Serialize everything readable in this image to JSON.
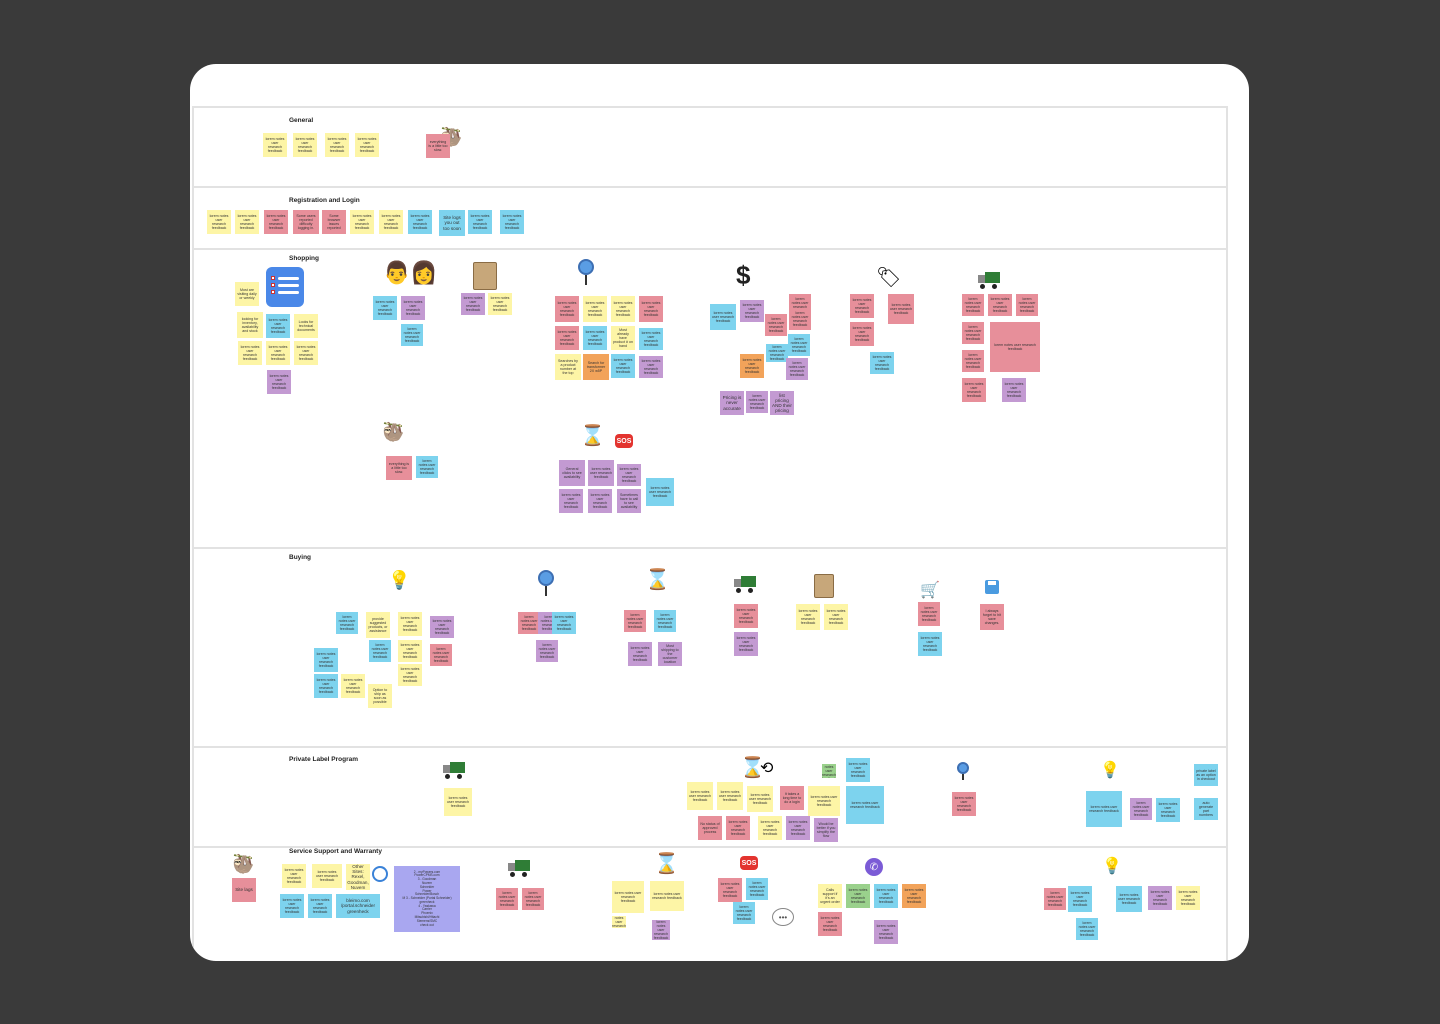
{
  "lanes": [
    {
      "title": "General"
    },
    {
      "title": "Registration and Login"
    },
    {
      "title": "Shopping"
    },
    {
      "title": "Buying"
    },
    {
      "title": "Private Label Program"
    },
    {
      "title": "Service Support and Warranty"
    }
  ],
  "notes": {
    "general_everything_slow": "everything is a little too slow.",
    "reg_some_users": "Some users reported difficulty logging in.",
    "reg_some_browser": "Some browser issues reported",
    "reg_site_logs": "Site logs you out too soon",
    "shop_most_visiting": "Most are visiting daily or weekly",
    "shop_looking_inventory": "looking for inventory, availability and stock",
    "shop_looks_technical": "Looks for technical documents",
    "shop_searches_product": "Searches by a product number at the top",
    "shop_search_transformer": "Search for transformer 2X w5P",
    "shop_most_already": "Most already have product # on hand",
    "shop_pricing_never": "Pricing is never accurate",
    "shop_list_pricing": "list pricing AND their pricing",
    "shop_everything_slow": "everything is a little too slow.",
    "shop_general_clicks": "General clicks to see availability",
    "shop_sometimes_have": "Sometimes have to call to see availability",
    "buy_provide_suggested": "provide suggested products, or assistance",
    "buy_option_ship": "Option to ship as soon as possible",
    "buy_most_shipping": "Most shipping to the customer location",
    "buy_always_forget": "I always forget to hit save changes.",
    "pl_no_status": "No status of approved process",
    "pl_it_takes": "It takes a long time to do a login",
    "pl_would_better": "Would be better if you simplify the flow",
    "pl_private_label": "private label as an option in checkout",
    "pl_auto_generate": "auto generate part numbers",
    "ss_site_lags": "Site lags",
    "ss_other_sites": "Other Sites: Rexel, Goodman, Nuvem",
    "ss_bleimo": "bleimo.com /portal.schneider greenheck",
    "ss_list": "2 - myPowers.com\nPowerCPMS.com\n3 - Goodman\nNuvem\nSchneider\nPower\nSchneider/Bosch\nM 3 - Schneider (Portal Schneider)\ngreenheck\n4 - Yaskawa\nCarrier\nPhoenix\nMitsubishi/Hitachi\nSiemens/SMC\ncheck out",
    "ss_calls_support": "Calls support if it's an urgent order"
  },
  "tiny_text": "lorem notes user research feedback",
  "icons": [
    "sloth-icon",
    "checklist-icon",
    "family-icon",
    "scroll-icon",
    "magnifier-icon",
    "dollar-icon",
    "price-tag-icon",
    "truck-icon",
    "hourglass-icon",
    "sos-icon",
    "lightbulb-icon",
    "cart-icon",
    "floppy-disk-icon",
    "repeat-icon",
    "phone-icon",
    "speech-bubble-icon",
    "globe-icon"
  ],
  "colors": {
    "yellow": "#fdf5a6",
    "pink": "#e78f9a",
    "blue": "#7dd3ee",
    "purple": "#c39ad2",
    "orange": "#f2a35a",
    "green": "#9ad18c",
    "lavender": "#a9a7f0"
  }
}
